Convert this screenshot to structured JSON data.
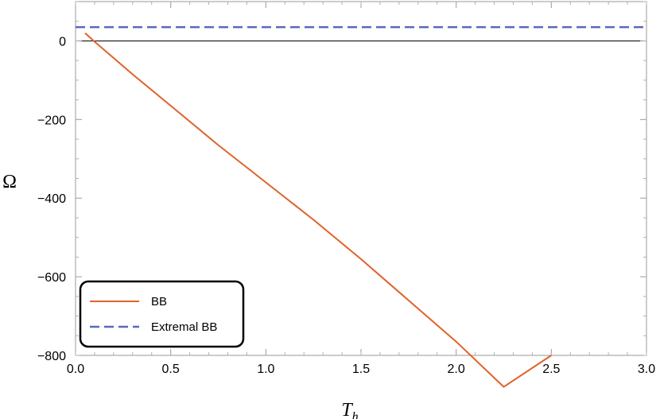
{
  "chart_data": {
    "type": "line",
    "xlabel_main": "T",
    "xlabel_sub": "h",
    "ylabel": "Ω",
    "xlim": [
      0,
      3
    ],
    "ylim": [
      -800,
      100
    ],
    "x_ticks": [
      {
        "value": 0,
        "label": "0.0"
      },
      {
        "value": 0.5,
        "label": "0.5"
      },
      {
        "value": 1,
        "label": "1.0"
      },
      {
        "value": 1.5,
        "label": "1.5"
      },
      {
        "value": 2,
        "label": "2.0"
      },
      {
        "value": 2.5,
        "label": "2.5"
      },
      {
        "value": 3,
        "label": "3.0"
      }
    ],
    "y_ticks": [
      {
        "value": 0,
        "label": "0"
      },
      {
        "value": -200,
        "label": "−200"
      },
      {
        "value": -400,
        "label": "−400"
      },
      {
        "value": -600,
        "label": "−600"
      },
      {
        "value": -800,
        "label": "−800"
      }
    ],
    "legend_position": "bottom-left",
    "series": [
      {
        "name": "BB",
        "color": "#e0622a",
        "style": "solid",
        "x": [
          0.05,
          0.1,
          0.3,
          0.5,
          0.75,
          1.0,
          1.25,
          1.5,
          1.75,
          2.0,
          2.25,
          2.5
        ],
        "y": [
          20,
          -2,
          -85,
          -165,
          -265,
          -360,
          -455,
          -555,
          -660,
          -765,
          -880,
          -800
        ]
      },
      {
        "name": "Extremal BB",
        "color": "#5a68bd",
        "style": "dashed",
        "x": [
          0,
          3
        ],
        "y": [
          35,
          35
        ]
      }
    ]
  }
}
